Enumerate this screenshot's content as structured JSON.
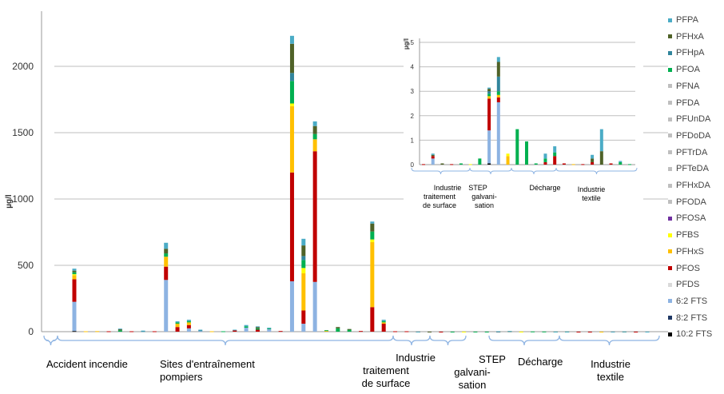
{
  "colors": {
    "PFPA": "#4bacc6",
    "PFHxA": "#4f6228",
    "PFHpA": "#31859c",
    "PFOA": "#00b050",
    "PFNA": "#bfbfbf",
    "PFDA": "#bfbfbf",
    "PFUnDA": "#bfbfbf",
    "PFDoDA": "#bfbfbf",
    "PFTrDA": "#bfbfbf",
    "PFTeDA": "#bfbfbf",
    "PFHxDA": "#bfbfbf",
    "PFODA": "#bfbfbf",
    "PFOSA": "#7030a0",
    "PFBS": "#ffff00",
    "PFHxS": "#ffc000",
    "PFOS": "#c00000",
    "PFDS": "#d9d9d9",
    "6:2 FTS": "#8db3e2",
    "8:2 FTS": "#1f3864",
    "10:2 FTS": "#000000",
    "axis": "#999999",
    "grid": "#bfbfbf",
    "brace": "#8eb4e3",
    "text": "#000000"
  },
  "legend": [
    "PFPA",
    "PFHxA",
    "PFHpA",
    "PFOA",
    "PFNA",
    "PFDA",
    "PFUnDA",
    "PFDoDA",
    "PFTrDA",
    "PFTeDA",
    "PFHxDA",
    "PFODA",
    "PFOSA",
    "PFBS",
    "PFHxS",
    "PFOS",
    "PFDS",
    "6:2 FTS",
    "8:2 FTS",
    "10:2 FTS"
  ],
  "chart_data": [
    {
      "type": "bar",
      "stacked": true,
      "ylabel": "µg/l",
      "ylim": [
        0,
        2400
      ],
      "yticks": [
        0,
        500,
        1000,
        1500,
        2000
      ],
      "grid": true,
      "legend_position": "right",
      "groups": [
        {
          "label": "Accident incendie",
          "bar_range": [
            0,
            2
          ]
        },
        {
          "label": "Sites d'entraînement pompiers",
          "bar_range": [
            3,
            29
          ]
        },
        {
          "label": "Industrie traitement de surface",
          "bar_range": [
            30,
            33
          ]
        },
        {
          "label": "STEP galvani-sation",
          "bar_range": [
            34,
            36
          ]
        },
        {
          "label": "Décharge",
          "bar_range": [
            37,
            43
          ]
        },
        {
          "label": "Industrie textile",
          "bar_range": [
            44,
            52
          ]
        }
      ],
      "bars": [
        {
          "6:2 FTS": 220,
          "PFOS": 170,
          "PFHxS": 30,
          "PFBS": 8,
          "PFOA": 15,
          "PFHxA": 12,
          "PFPA": 15,
          "10:2 FTS": 5
        },
        {
          "PFHxS": 3
        },
        {
          "PFHxS": 4
        },
        {
          "PFOS": 3
        },
        {
          "PFHxA": 8,
          "PFOA": 10,
          "PFPA": 5
        },
        {
          "PFOS": 3
        },
        {
          "PFHpA": 4,
          "PFPA": 4
        },
        {
          "PFOS": 3
        },
        {
          "6:2 FTS": 390,
          "PFOS": 100,
          "PFHxS": 75,
          "PFOA": 25,
          "PFHxA": 35,
          "PFPA": 45
        },
        {
          "PFOS": 35,
          "PFHxS": 25,
          "PFOA": 10,
          "PFPA": 8
        },
        {
          "6:2 FTS": 25,
          "PFOS": 25,
          "PFHxS": 20,
          "PFOA": 10,
          "PFPA": 10
        },
        {
          "6:2 FTS": 5,
          "PFHpA": 5,
          "PFPA": 5
        },
        {
          "PFHxS": 3
        },
        {
          "PFOA": 3
        },
        {
          "PFOS": 12,
          "PFPA": 3
        },
        {
          "6:2 FTS": 30,
          "PFOA": 10,
          "PFPA": 10
        },
        {
          "PFOS": 15,
          "PFOA": 10,
          "PFHxA": 10,
          "PFPA": 5
        },
        {
          "6:2 FTS": 20,
          "PFOA": 5,
          "PFPA": 5
        },
        {
          "PFOS": 5
        },
        {
          "6:2 FTS": 380,
          "PFOS": 820,
          "PFHxS": 500,
          "PFBS": 20,
          "PFOA": 170,
          "PFHxA": 220,
          "PFHpA": 60,
          "PFPA": 60
        },
        {
          "6:2 FTS": 60,
          "PFOS": 100,
          "PFHxS": 280,
          "PFBS": 40,
          "PFOA": 60,
          "PFHxA": 80,
          "PFHpA": 30,
          "PFPA": 50
        },
        {
          "6:2 FTS": 375,
          "PFOS": 985,
          "PFHxS": 90,
          "PFOA": 40,
          "PFHxA": 60,
          "PFPA": 35
        },
        {
          "PFHxS": 8,
          "PFOA": 3
        },
        {
          "PFOA": 25,
          "PFHxA": 10
        },
        {
          "PFOA": 15,
          "PFHxA": 5
        },
        {
          "PFOS": 5
        },
        {
          "PFOS": 185,
          "PFHxS": 490,
          "PFBS": 20,
          "PFOA": 60,
          "PFHxA": 60,
          "PFPA": 15
        },
        {
          "PFOS": 60,
          "PFHxS": 10,
          "PFOA": 10,
          "PFPA": 10
        },
        {
          "PFOS": 3
        },
        {
          "PFOS": 3
        },
        {
          "6:2 FTS": 0.25,
          "PFOS": 0.1,
          "PFHxA": 0.05,
          "PFPA": 0.05
        },
        {
          "PFHxA": 0.05
        },
        {
          "PFOS": 0.02
        },
        {
          "PFOA": 0.05
        },
        {
          "PFBS": 0.02
        },
        {
          "PFOA": 0.25
        },
        {
          "PFOA": 0.05
        },
        {
          "6:2 FTS": 1.35,
          "PFOS": 1.3,
          "PFHxS": 0.1,
          "PFOA": 0.1,
          "PFHxA": 0.1,
          "PFHpA": 0.1,
          "PFPA": 0.05,
          "10:2 FTS": 0.05
        },
        {
          "6:2 FTS": 2.55,
          "PFOS": 0.2,
          "PFHxS": 0.1,
          "PFOA": 0.15,
          "PFHxA": 0.6,
          "PFHpA": 0.6,
          "PFPA": 0.2
        },
        {
          "PFHxS": 0.35,
          "PFBS": 0.1
        },
        {
          "PFOA": 1.45
        },
        {
          "PFOA": 0.95
        },
        {
          "PFOA": 0.15,
          "PFOS": 0.1,
          "PFPA": 0.2
        },
        {
          "PFOS": 0.35,
          "PFOA": 0.15,
          "PFPA": 0.25
        },
        {
          "PFOS": 0.05
        },
        {
          "PFOS": 0.02
        },
        {
          "PFHxS": 0.02
        },
        {
          "PFOS": 0.1,
          "PFHxA": 0.15,
          "PFPA": 0.15
        },
        {
          "PFHxA": 0.55,
          "PFPA": 0.9
        },
        {
          "PFOS": 0.05
        },
        {
          "PFOA": 0.1,
          "PFPA": 0.05
        }
      ]
    },
    {
      "type": "bar",
      "stacked": true,
      "inset": true,
      "ylabel": "µg/l",
      "ylim": [
        0,
        5
      ],
      "yticks": [
        0,
        1,
        2,
        3,
        4,
        5
      ],
      "grid": true,
      "groups": [
        {
          "label": "Industrie traitement de surface",
          "bar_range": [
            0,
            3
          ]
        },
        {
          "label": "STEP galvani-sation",
          "bar_range": [
            4,
            6
          ]
        },
        {
          "label": "Décharge",
          "bar_range": [
            7,
            13
          ]
        },
        {
          "label": "Industrie textile",
          "bar_range": [
            14,
            22
          ]
        }
      ],
      "bars": [
        {
          "PFOS": 0.02
        },
        {
          "6:2 FTS": 0.25,
          "PFOS": 0.1,
          "PFHxA": 0.05,
          "PFPA": 0.05
        },
        {
          "PFHxA": 0.05
        },
        {
          "PFOS": 0.02
        },
        {
          "PFOA": 0.05
        },
        {
          "PFBS": 0.02
        },
        {
          "PFOA": 0.25
        },
        {
          "6:2 FTS": 1.35,
          "PFOS": 1.3,
          "PFHxS": 0.1,
          "PFOA": 0.1,
          "PFHxA": 0.1,
          "PFHpA": 0.1,
          "PFPA": 0.05,
          "10:2 FTS": 0.05
        },
        {
          "6:2 FTS": 2.55,
          "PFOS": 0.2,
          "PFHxS": 0.1,
          "PFOA": 0.15,
          "PFHxA": 0.6,
          "PFHpA": 0.6,
          "PFPA": 0.2
        },
        {
          "PFHxS": 0.35,
          "PFBS": 0.1
        },
        {
          "PFOA": 1.45
        },
        {
          "PFOA": 0.95
        },
        {
          "PFOA": 0.05
        },
        {
          "PFOA": 0.15,
          "PFOS": 0.1,
          "PFPA": 0.2
        },
        {
          "PFOS": 0.35,
          "PFOA": 0.15,
          "PFPA": 0.25
        },
        {
          "PFOS": 0.05
        },
        {
          "PFHxS": 0.02
        },
        {
          "PFOS": 0.02
        },
        {
          "PFOS": 0.1,
          "PFHxA": 0.15,
          "PFPA": 0.15
        },
        {
          "PFHxA": 0.55,
          "PFPA": 0.9
        },
        {
          "PFOS": 0.05
        },
        {
          "PFOA": 0.1,
          "PFPA": 0.05
        },
        {
          "PFOA": 0.02
        }
      ]
    }
  ]
}
